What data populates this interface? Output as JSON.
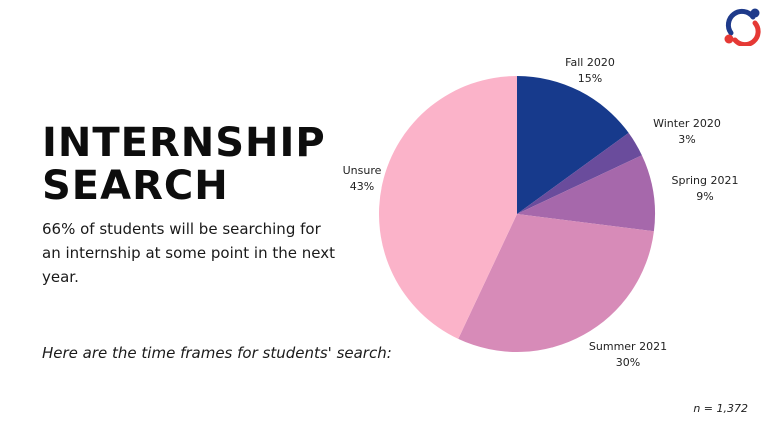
{
  "heading": {
    "line1": "INTERNSHIP",
    "line2": "SEARCH"
  },
  "subtitle": "66% of students will be searching for an internship at some point in the next year.",
  "note": "Here are the time frames for students' search:",
  "footnote": "n = 1,372",
  "logo": {
    "icon": "ring-with-dots-icon",
    "colors": [
      "#1e3a8a",
      "#e53935"
    ]
  },
  "chart_data": {
    "type": "pie",
    "title": "",
    "legend": "none",
    "slices": [
      {
        "label": "Fall 2020",
        "value": 15,
        "value_label": "15%",
        "color": "#173a8c"
      },
      {
        "label": "Winter 2020",
        "value": 3,
        "value_label": "3%",
        "color": "#6a4c9c"
      },
      {
        "label": "Spring 2021",
        "value": 9,
        "value_label": "9%",
        "color": "#a668ab"
      },
      {
        "label": "Summer 2021",
        "value": 30,
        "value_label": "30%",
        "color": "#d78bb8"
      },
      {
        "label": "Unsure",
        "value": 43,
        "value_label": "43%",
        "color": "#fbb3c9"
      }
    ]
  }
}
